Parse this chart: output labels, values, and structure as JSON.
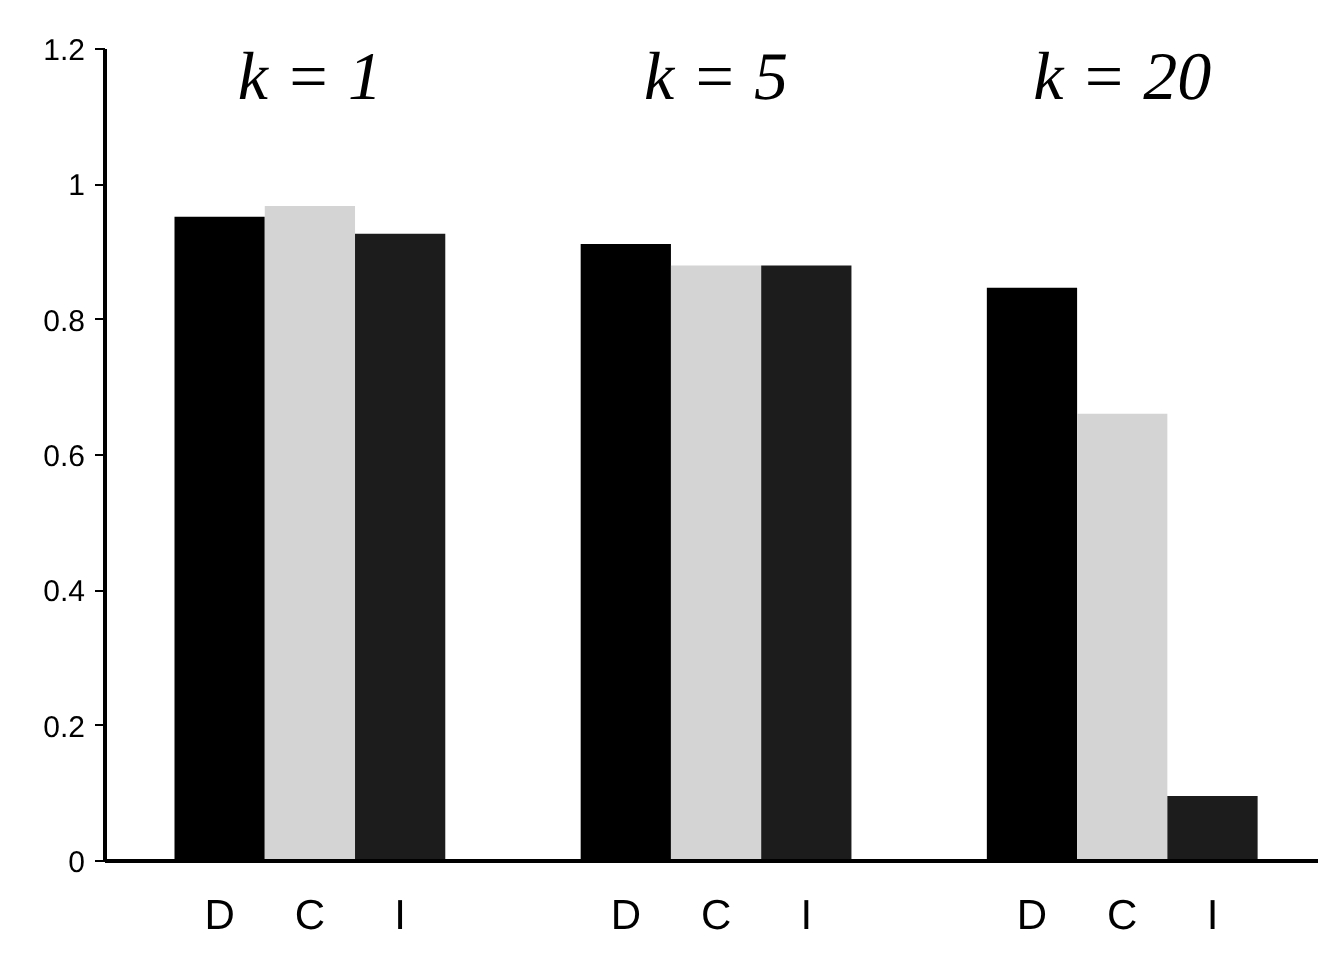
{
  "chart_data": {
    "type": "bar",
    "categories": [
      "D",
      "C",
      "I",
      "D",
      "C",
      "I",
      "D",
      "C",
      "I"
    ],
    "values": [
      0.952,
      0.968,
      0.927,
      0.912,
      0.88,
      0.88,
      0.847,
      0.661,
      0.096
    ],
    "colors": [
      "#000000",
      "#d4d4d4",
      "#1c1c1c",
      "#000000",
      "#d4d4d4",
      "#1c1c1c",
      "#000000",
      "#d4d4d4",
      "#1c1c1c"
    ],
    "ylim": [
      0,
      1.2
    ],
    "yticks": [
      0,
      {
        "value": 0.2,
        "label": "0.2"
      },
      {
        "value": 0.4,
        "label": "0.4"
      },
      {
        "value": 0.6,
        "label": "0.6"
      },
      {
        "value": 0.8,
        "label": "0.8"
      },
      1,
      {
        "value": 1.2,
        "label": "1.2"
      }
    ],
    "annotations": [
      "k = 1",
      "k = 5",
      "k = 20"
    ]
  }
}
